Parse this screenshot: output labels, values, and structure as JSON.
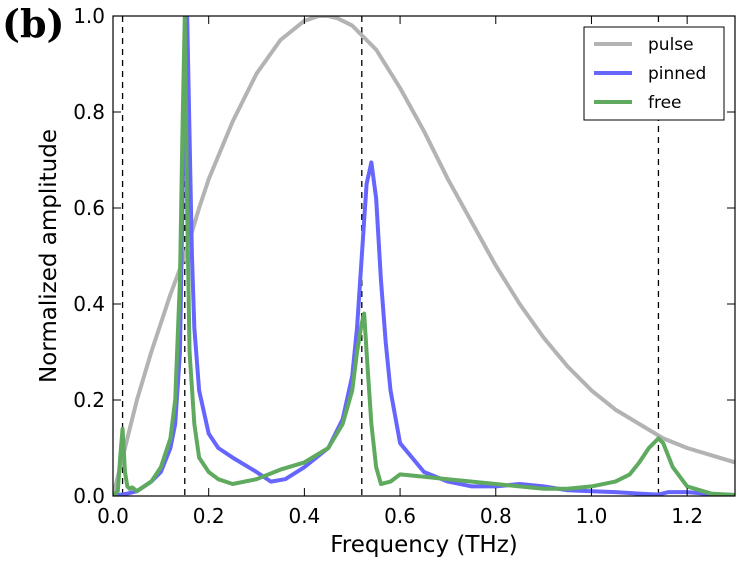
{
  "chart_data": {
    "type": "line",
    "panel_label": "(b)",
    "xlabel": "Frequency (THz)",
    "ylabel": "Normalized amplitude",
    "xlim": [
      0.0,
      1.3
    ],
    "ylim": [
      0.0,
      1.0
    ],
    "xticks": [
      "0.0",
      "0.2",
      "0.4",
      "0.6",
      "0.8",
      "1.0",
      "1.2"
    ],
    "xtick_values": [
      0.0,
      0.2,
      0.4,
      0.6,
      0.8,
      1.0,
      1.2
    ],
    "yticks": [
      "0.0",
      "0.2",
      "0.4",
      "0.6",
      "0.8",
      "1.0"
    ],
    "ytick_values": [
      0.0,
      0.2,
      0.4,
      0.6,
      0.8,
      1.0
    ],
    "legend_position": "top-right",
    "vlines": [
      0.02,
      0.15,
      0.52,
      1.14
    ],
    "series": [
      {
        "name": "pulse",
        "color": "#b3b3b3",
        "x": [
          0.0,
          0.02,
          0.05,
          0.08,
          0.1,
          0.12,
          0.15,
          0.18,
          0.2,
          0.25,
          0.3,
          0.35,
          0.4,
          0.43,
          0.45,
          0.47,
          0.5,
          0.55,
          0.6,
          0.65,
          0.7,
          0.75,
          0.8,
          0.85,
          0.9,
          0.95,
          1.0,
          1.05,
          1.1,
          1.15,
          1.2,
          1.25,
          1.3
        ],
        "y": [
          0.0,
          0.08,
          0.2,
          0.3,
          0.36,
          0.42,
          0.5,
          0.6,
          0.66,
          0.78,
          0.88,
          0.95,
          0.99,
          1.0,
          1.0,
          0.995,
          0.98,
          0.93,
          0.85,
          0.76,
          0.66,
          0.57,
          0.48,
          0.4,
          0.33,
          0.27,
          0.22,
          0.18,
          0.15,
          0.12,
          0.1,
          0.085,
          0.07
        ]
      },
      {
        "name": "pinned",
        "color": "#6666ff",
        "x": [
          0.0,
          0.03,
          0.05,
          0.08,
          0.1,
          0.12,
          0.13,
          0.14,
          0.145,
          0.15,
          0.155,
          0.16,
          0.165,
          0.17,
          0.18,
          0.2,
          0.22,
          0.25,
          0.3,
          0.33,
          0.36,
          0.4,
          0.45,
          0.48,
          0.5,
          0.51,
          0.52,
          0.53,
          0.54,
          0.55,
          0.56,
          0.57,
          0.58,
          0.6,
          0.65,
          0.7,
          0.75,
          0.8,
          0.85,
          0.9,
          0.95,
          1.0,
          1.05,
          1.1,
          1.14,
          1.16,
          1.2,
          1.25,
          1.3
        ],
        "y": [
          0.0,
          0.005,
          0.01,
          0.03,
          0.05,
          0.1,
          0.15,
          0.3,
          0.6,
          0.95,
          1.0,
          0.75,
          0.5,
          0.35,
          0.22,
          0.13,
          0.1,
          0.08,
          0.05,
          0.03,
          0.035,
          0.06,
          0.1,
          0.16,
          0.25,
          0.35,
          0.5,
          0.65,
          0.695,
          0.62,
          0.45,
          0.32,
          0.22,
          0.11,
          0.05,
          0.03,
          0.02,
          0.02,
          0.025,
          0.02,
          0.012,
          0.01,
          0.008,
          0.005,
          0.003,
          0.008,
          0.008,
          0.004,
          0.002
        ]
      },
      {
        "name": "free",
        "color": "#5faa5f",
        "x": [
          0.0,
          0.01,
          0.015,
          0.02,
          0.025,
          0.03,
          0.035,
          0.04,
          0.05,
          0.08,
          0.1,
          0.12,
          0.13,
          0.14,
          0.145,
          0.15,
          0.155,
          0.16,
          0.17,
          0.18,
          0.2,
          0.22,
          0.25,
          0.3,
          0.35,
          0.4,
          0.45,
          0.48,
          0.5,
          0.51,
          0.52,
          0.525,
          0.53,
          0.54,
          0.55,
          0.56,
          0.58,
          0.6,
          0.65,
          0.7,
          0.75,
          0.8,
          0.85,
          0.9,
          0.95,
          1.0,
          1.05,
          1.08,
          1.1,
          1.12,
          1.14,
          1.15,
          1.17,
          1.2,
          1.25,
          1.3
        ],
        "y": [
          0.0,
          0.01,
          0.08,
          0.14,
          0.05,
          0.02,
          0.015,
          0.018,
          0.01,
          0.03,
          0.06,
          0.12,
          0.2,
          0.45,
          0.75,
          1.0,
          0.6,
          0.3,
          0.15,
          0.08,
          0.05,
          0.035,
          0.025,
          0.035,
          0.055,
          0.07,
          0.1,
          0.15,
          0.22,
          0.3,
          0.36,
          0.38,
          0.3,
          0.15,
          0.06,
          0.025,
          0.03,
          0.045,
          0.04,
          0.035,
          0.03,
          0.025,
          0.02,
          0.015,
          0.015,
          0.02,
          0.03,
          0.045,
          0.07,
          0.1,
          0.12,
          0.11,
          0.06,
          0.02,
          0.005,
          0.002
        ]
      }
    ]
  }
}
